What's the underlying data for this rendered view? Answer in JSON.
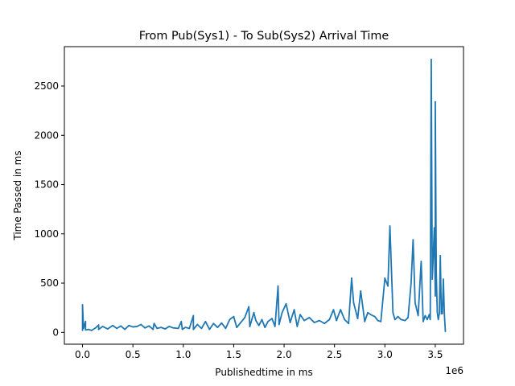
{
  "chart_data": {
    "type": "line",
    "title": "From Pub(Sys1) - To Sub(Sys2) Arrival Time",
    "xlabel": "Publishedtime in ms",
    "ylabel": "Time Passed in ms",
    "x_offset_label": "1e6",
    "xlim": [
      -0.18,
      3.78
    ],
    "ylim": [
      -120,
      2900
    ],
    "x_ticks": [
      0.0,
      0.5,
      1.0,
      1.5,
      2.0,
      2.5,
      3.0,
      3.5
    ],
    "x_tick_labels": [
      "0.0",
      "0.5",
      "1.0",
      "1.5",
      "2.0",
      "2.5",
      "3.0",
      "3.5"
    ],
    "y_ticks": [
      0,
      500,
      1000,
      1500,
      2000,
      2500
    ],
    "y_tick_labels": [
      "0",
      "500",
      "1000",
      "1500",
      "2000",
      "2500"
    ],
    "line_color": "#1f77b4",
    "grid": false,
    "legend": false,
    "series": [
      {
        "x": [
          0.0,
          0.0,
          0.01,
          0.03,
          0.03,
          0.06,
          0.09,
          0.13,
          0.16,
          0.16,
          0.2,
          0.25,
          0.3,
          0.34,
          0.38,
          0.42,
          0.46,
          0.5,
          0.54,
          0.58,
          0.62,
          0.66,
          0.7,
          0.71,
          0.74,
          0.78,
          0.82,
          0.86,
          0.9,
          0.95,
          0.98,
          0.99,
          1.02,
          1.06,
          1.1,
          1.1,
          1.14,
          1.18,
          1.22,
          1.26,
          1.3,
          1.34,
          1.38,
          1.42,
          1.46,
          1.5,
          1.53,
          1.57,
          1.61,
          1.65,
          1.66,
          1.7,
          1.72,
          1.75,
          1.78,
          1.81,
          1.84,
          1.88,
          1.91,
          1.94,
          1.95,
          1.98,
          2.02,
          2.06,
          2.1,
          2.13,
          2.16,
          2.2,
          2.25,
          2.3,
          2.35,
          2.4,
          2.45,
          2.49,
          2.52,
          2.56,
          2.6,
          2.64,
          2.67,
          2.69,
          2.73,
          2.76,
          2.8,
          2.83,
          2.86,
          2.9,
          2.93,
          2.96,
          3.0,
          3.03,
          3.05,
          3.08,
          3.1,
          3.13,
          3.16,
          3.2,
          3.23,
          3.26,
          3.28,
          3.3,
          3.33,
          3.36,
          3.38,
          3.4,
          3.42,
          3.44,
          3.45,
          3.46,
          3.47,
          3.48,
          3.49,
          3.5,
          3.5,
          3.51,
          3.52,
          3.53,
          3.54,
          3.55,
          3.56,
          3.57,
          3.58,
          3.59,
          3.6
        ],
        "y": [
          20,
          280,
          40,
          110,
          25,
          30,
          20,
          45,
          75,
          30,
          60,
          35,
          70,
          40,
          65,
          30,
          70,
          55,
          60,
          80,
          45,
          65,
          30,
          90,
          40,
          50,
          35,
          60,
          45,
          40,
          110,
          30,
          50,
          40,
          170,
          30,
          80,
          40,
          110,
          30,
          90,
          50,
          95,
          40,
          130,
          160,
          50,
          100,
          150,
          260,
          60,
          200,
          120,
          70,
          130,
          50,
          110,
          140,
          60,
          470,
          80,
          200,
          290,
          100,
          230,
          60,
          180,
          120,
          150,
          100,
          120,
          90,
          130,
          230,
          120,
          230,
          130,
          90,
          550,
          300,
          140,
          420,
          110,
          200,
          180,
          160,
          120,
          110,
          550,
          470,
          1080,
          200,
          130,
          160,
          130,
          120,
          150,
          500,
          940,
          300,
          170,
          720,
          110,
          170,
          130,
          180,
          130,
          2770,
          540,
          780,
          1060,
          370,
          2340,
          600,
          200,
          130,
          190,
          780,
          190,
          190,
          540,
          190,
          10
        ]
      }
    ]
  }
}
